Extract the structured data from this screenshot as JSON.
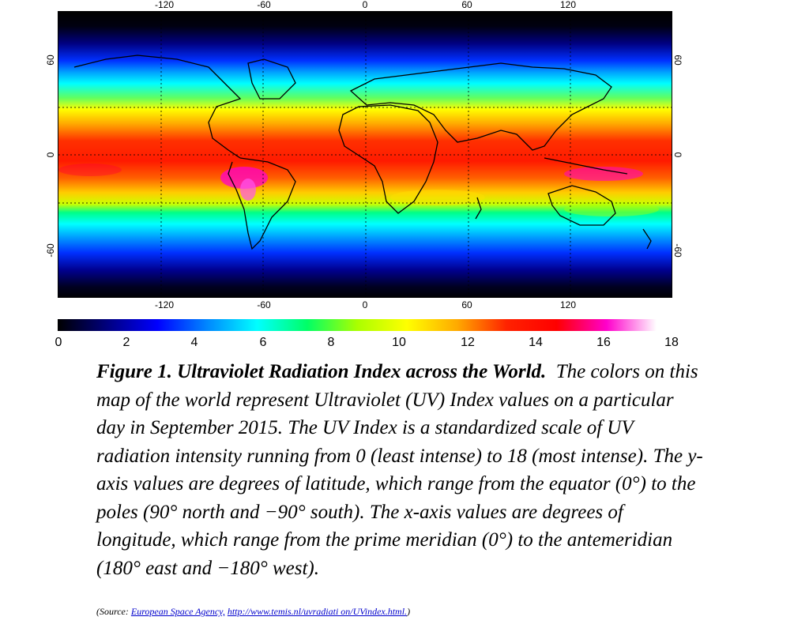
{
  "map": {
    "longitude_ticks": [
      "-120",
      "-60",
      "0",
      "60",
      "120"
    ],
    "latitude_ticks": [
      "60",
      "0",
      "-60"
    ],
    "colorbar": {
      "labels": [
        "0",
        "2",
        "4",
        "6",
        "8",
        "10",
        "12",
        "14",
        "16",
        "18"
      ],
      "min": 0,
      "max": 18,
      "colors": [
        "#000000",
        "#000080",
        "#0000ff",
        "#0088ff",
        "#00ffff",
        "#00ff66",
        "#aaff00",
        "#ffff00",
        "#ffaa00",
        "#ff2200",
        "#ff0000",
        "#ff00cc",
        "#ffffff"
      ]
    }
  },
  "caption": {
    "title": "Figure 1. Ultraviolet Radiation Index across the World.",
    "body": "The colors on this map of the world represent Ultraviolet (UV) Index values on a particular day in September 2015. The UV Index is a standardized scale of UV radiation intensity running from 0 (least intense) to 18 (most intense). The y-axis values are degrees of latitude, which range from the equator (0°) to the poles (90° north and −90° south). The x-axis values are degrees of longitude, which range from the prime meridian (0°) to the antemeridian (180° east and −180° west)."
  },
  "source": {
    "prefix": "(Source: ",
    "link1": "European Space Agency,",
    "link2": "http://www.temis.nl/uvradiati on/UVindex.html.",
    "suffix": ")"
  }
}
